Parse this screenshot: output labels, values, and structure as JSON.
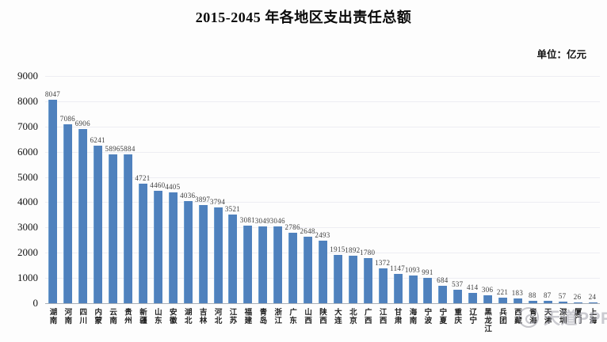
{
  "header": {
    "title": "2015-2045 年各地区支出责任总额",
    "unit_label": "单位：亿元"
  },
  "chart_data": {
    "type": "bar",
    "title": "2015-2045 年各地区支出责任总额",
    "ylabel": "亿元",
    "xlabel": "",
    "ylim": [
      0,
      9000
    ],
    "ytick_interval": 1000,
    "grid": true,
    "legend": "none",
    "bar_color": "#4f81bd",
    "value_labels_shown": true,
    "categories": [
      "湖南",
      "河南",
      "四川",
      "内蒙",
      "云南",
      "贵州",
      "新疆",
      "山东",
      "安徽",
      "湖北",
      "吉林",
      "河北",
      "江苏",
      "福建",
      "青岛",
      "浙江",
      "广东",
      "山西",
      "陕西",
      "大连",
      "北京",
      "广西",
      "江西",
      "甘肃",
      "海南",
      "宁波",
      "宁夏",
      "重庆",
      "辽宁",
      "黑龙江",
      "兵团",
      "西藏",
      "青海",
      "天津",
      "深圳",
      "厦门",
      "上海"
    ],
    "values": [
      8047,
      7086,
      6906,
      6241,
      5896,
      5884,
      4721,
      4460,
      4405,
      4036,
      3897,
      3794,
      3521,
      3081,
      3049,
      3046,
      2786,
      2648,
      2493,
      1915,
      1892,
      1780,
      1372,
      1147,
      1093,
      991,
      684,
      537,
      414,
      306,
      221,
      183,
      88,
      87,
      57,
      26,
      24
    ]
  },
  "watermark": {
    "text": "天道PPP",
    "logo": "circle-logo"
  }
}
